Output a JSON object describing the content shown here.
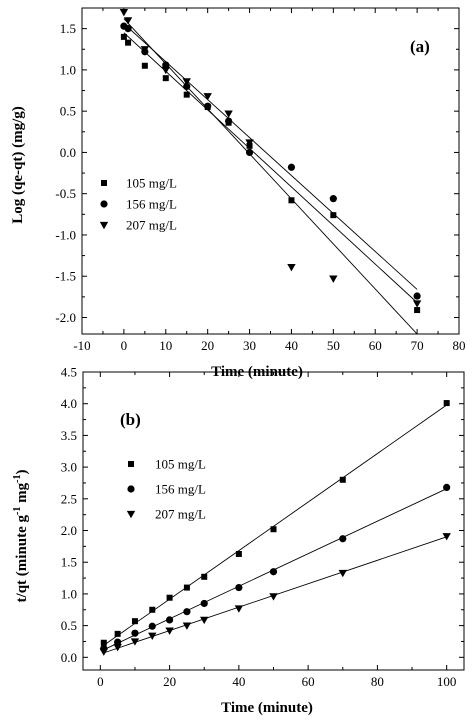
{
  "chart_data": [
    {
      "type": "scatter",
      "panel_label": "(a)",
      "xlabel": "Time (minute)",
      "ylabel": "Log (qe-qt) (mg/g)",
      "xlim": [
        -10,
        80
      ],
      "ylim": [
        -2.2,
        1.75
      ],
      "xticks": [
        -10,
        0,
        10,
        20,
        30,
        40,
        50,
        60,
        70,
        80
      ],
      "yticks": [
        -2.0,
        -1.5,
        -1.0,
        -0.5,
        0.0,
        0.5,
        1.0,
        1.5
      ],
      "ytick_labels": [
        "-2.0",
        "-1.5",
        "-1.0",
        "-0.5",
        "0.0",
        "0.5",
        "1.0",
        "1.5"
      ],
      "legend_position": "left-middle",
      "series": [
        {
          "name": "105 mg/L",
          "marker": "square",
          "x": [
            0,
            1,
            5,
            10,
            15,
            20,
            25,
            30,
            40,
            50,
            70
          ],
          "y": [
            1.4,
            1.33,
            1.05,
            0.9,
            0.7,
            0.55,
            0.36,
            0.08,
            -0.58,
            -0.76,
            -1.91
          ],
          "fit": [
            [
              0,
              1.45
            ],
            [
              70,
              -1.82
            ]
          ]
        },
        {
          "name": "156 mg/L",
          "marker": "circle",
          "x": [
            0,
            1,
            5,
            10,
            15,
            20,
            25,
            30,
            40,
            50,
            70
          ],
          "y": [
            1.53,
            1.5,
            1.22,
            1.06,
            0.8,
            0.56,
            0.38,
            0.0,
            -0.18,
            -0.56,
            -1.74
          ],
          "fit": [
            [
              0,
              1.56
            ],
            [
              70,
              -1.66
            ]
          ]
        },
        {
          "name": "207 mg/L",
          "marker": "triangle-down",
          "x": [
            0,
            1,
            5,
            10,
            15,
            20,
            25,
            30,
            40,
            50,
            70
          ],
          "y": [
            1.7,
            1.6,
            1.25,
            1.0,
            0.86,
            0.68,
            0.47,
            0.12,
            -1.39,
            -1.53,
            -1.83
          ],
          "fit": [
            [
              0,
              1.62
            ],
            [
              70,
              -2.2
            ]
          ]
        }
      ]
    },
    {
      "type": "scatter",
      "panel_label": "(b)",
      "xlabel": "Time (minute)",
      "ylabel": "t/qt (minute g",
      "ylabel_sup1": "-1",
      "ylabel_mid": " mg",
      "ylabel_sup2": "-1",
      "ylabel_end": ")",
      "xlim": [
        -5,
        105
      ],
      "ylim": [
        -0.2,
        4.5
      ],
      "xticks": [
        0,
        20,
        40,
        60,
        80,
        100
      ],
      "yticks": [
        0.0,
        0.5,
        1.0,
        1.5,
        2.0,
        2.5,
        3.0,
        3.5,
        4.0,
        4.5
      ],
      "ytick_labels": [
        "0.0",
        "0.5",
        "1.0",
        "1.5",
        "2.0",
        "2.5",
        "3.0",
        "3.5",
        "4.0",
        "4.5"
      ],
      "legend_position": "top-left",
      "series": [
        {
          "name": "105 mg/L",
          "marker": "square",
          "x": [
            1,
            5,
            10,
            15,
            20,
            25,
            30,
            40,
            50,
            70,
            100
          ],
          "y": [
            0.23,
            0.37,
            0.57,
            0.75,
            0.94,
            1.1,
            1.27,
            1.63,
            2.02,
            2.8,
            4.01
          ],
          "fit": [
            [
              1,
              0.19
            ],
            [
              100,
              3.98
            ]
          ]
        },
        {
          "name": "156 mg/L",
          "marker": "circle",
          "x": [
            1,
            5,
            10,
            15,
            20,
            25,
            30,
            40,
            50,
            70,
            100
          ],
          "y": [
            0.14,
            0.24,
            0.38,
            0.49,
            0.59,
            0.72,
            0.85,
            1.1,
            1.35,
            1.87,
            2.68
          ],
          "fit": [
            [
              1,
              0.12
            ],
            [
              100,
              2.66
            ]
          ]
        },
        {
          "name": "207 mg/L",
          "marker": "triangle-down",
          "x": [
            1,
            5,
            10,
            15,
            20,
            25,
            30,
            40,
            50,
            70,
            100
          ],
          "y": [
            0.09,
            0.16,
            0.25,
            0.34,
            0.42,
            0.5,
            0.59,
            0.77,
            0.96,
            1.33,
            1.91
          ],
          "fit": [
            [
              1,
              0.07
            ],
            [
              100,
              1.9
            ]
          ]
        }
      ]
    }
  ]
}
